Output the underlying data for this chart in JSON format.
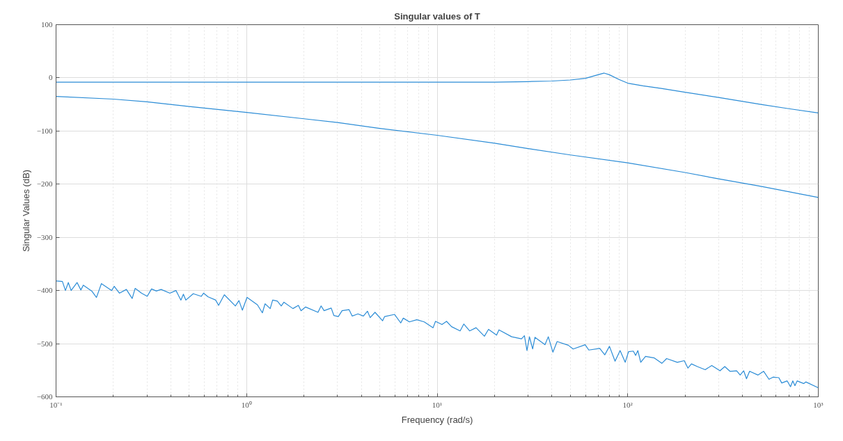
{
  "chart_data": {
    "type": "line",
    "title": "Singular values of T",
    "xlabel": "Frequency (rad/s)",
    "ylabel": "Singular Values (dB)",
    "log": "x",
    "grid": true,
    "line_style": "solid",
    "marker": "none",
    "xlim": [
      0.1,
      1000
    ],
    "ylim": [
      -600,
      100
    ],
    "xticks": [
      {
        "value": 0.1,
        "label": "10⁻¹"
      },
      {
        "value": 1,
        "label": "10⁰"
      },
      {
        "value": 10,
        "label": "10¹"
      },
      {
        "value": 100,
        "label": "10²"
      },
      {
        "value": 1000,
        "label": "10³"
      }
    ],
    "yticks": [
      -600,
      -500,
      -400,
      -300,
      -200,
      -100,
      0,
      100
    ],
    "series": [
      {
        "color": "#2b8cd6",
        "x": [
          0.1,
          1,
          10,
          20,
          30,
          40,
          50,
          60,
          70,
          75,
          80,
          90,
          100,
          120,
          150,
          200,
          300,
          500,
          700,
          1000
        ],
        "values": [
          -8,
          -8,
          -8,
          -8,
          -7,
          -6,
          -4,
          -1,
          6,
          9,
          6,
          -3,
          -10,
          -15,
          -20,
          -27,
          -37,
          -50,
          -58,
          -66
        ]
      },
      {
        "color": "#2b8cd6",
        "x": [
          0.1,
          0.2,
          0.3,
          0.5,
          1,
          2,
          3,
          5,
          10,
          20,
          30,
          50,
          100,
          200,
          300,
          500,
          1000
        ],
        "values": [
          -35,
          -40,
          -45,
          -54,
          -65,
          -77,
          -84,
          -95,
          -108,
          -123,
          -133,
          -145,
          -160,
          -178,
          -190,
          -204,
          -225
        ]
      },
      {
        "color": "#2b8cd6",
        "x": [
          0.1,
          0.108,
          0.112,
          0.116,
          0.12,
          0.129,
          0.135,
          0.139,
          0.154,
          0.163,
          0.173,
          0.196,
          0.202,
          0.215,
          0.234,
          0.251,
          0.26,
          0.281,
          0.301,
          0.317,
          0.336,
          0.356,
          0.396,
          0.426,
          0.452,
          0.466,
          0.48,
          0.525,
          0.578,
          0.595,
          0.628,
          0.688,
          0.713,
          0.764,
          0.873,
          0.912,
          0.95,
          1.005,
          1.14,
          1.21,
          1.25,
          1.33,
          1.37,
          1.45,
          1.52,
          1.57,
          1.75,
          1.87,
          1.93,
          2.04,
          2.37,
          2.46,
          2.55,
          2.78,
          2.87,
          3.03,
          3.17,
          3.45,
          3.58,
          3.84,
          4.1,
          4.31,
          4.45,
          4.72,
          5.17,
          5.3,
          5.98,
          6.44,
          6.64,
          7.15,
          7.82,
          8.55,
          9.52,
          9.8,
          10.6,
          11.2,
          11.9,
          13.2,
          13.8,
          14.8,
          16,
          17.7,
          18.6,
          20.5,
          21.1,
          24.6,
          27.7,
          28.7,
          29.6,
          30.5,
          31.7,
          32.6,
          36.8,
          38.3,
          40.5,
          42.6,
          48.8,
          51.7,
          59.8,
          62.5,
          71.3,
          75.8,
          80.2,
          85.8,
          91.2,
          97,
          101,
          107,
          110,
          113,
          117,
          124,
          138,
          151,
          160,
          182,
          198,
          207,
          216,
          232,
          255,
          276,
          305,
          323,
          344,
          373,
          389,
          406,
          420,
          436,
          482,
          517,
          551,
          579,
          621,
          643,
          686,
          715,
          735,
          754,
          775,
          838,
          861,
          1000
        ],
        "values": [
          -382,
          -383,
          -400,
          -385,
          -400,
          -385,
          -399,
          -390,
          -401,
          -413,
          -387,
          -400,
          -392,
          -405,
          -398,
          -415,
          -396,
          -405,
          -411,
          -397,
          -401,
          -398,
          -405,
          -400,
          -418,
          -407,
          -418,
          -406,
          -411,
          -405,
          -412,
          -418,
          -428,
          -408,
          -429,
          -419,
          -437,
          -413,
          -427,
          -442,
          -425,
          -434,
          -418,
          -420,
          -429,
          -422,
          -434,
          -428,
          -438,
          -431,
          -441,
          -429,
          -438,
          -433,
          -447,
          -449,
          -438,
          -436,
          -448,
          -444,
          -448,
          -439,
          -451,
          -441,
          -457,
          -449,
          -445,
          -461,
          -452,
          -459,
          -455,
          -459,
          -470,
          -458,
          -464,
          -458,
          -468,
          -476,
          -463,
          -476,
          -470,
          -486,
          -473,
          -484,
          -474,
          -487,
          -491,
          -485,
          -513,
          -487,
          -510,
          -488,
          -502,
          -487,
          -516,
          -496,
          -503,
          -510,
          -502,
          -512,
          -509,
          -521,
          -505,
          -533,
          -513,
          -535,
          -515,
          -514,
          -522,
          -513,
          -535,
          -524,
          -527,
          -537,
          -528,
          -535,
          -532,
          -546,
          -538,
          -543,
          -549,
          -541,
          -551,
          -543,
          -552,
          -551,
          -559,
          -551,
          -566,
          -552,
          -559,
          -552,
          -567,
          -563,
          -564,
          -574,
          -570,
          -581,
          -570,
          -579,
          -570,
          -575,
          -572,
          -583
        ]
      }
    ]
  }
}
